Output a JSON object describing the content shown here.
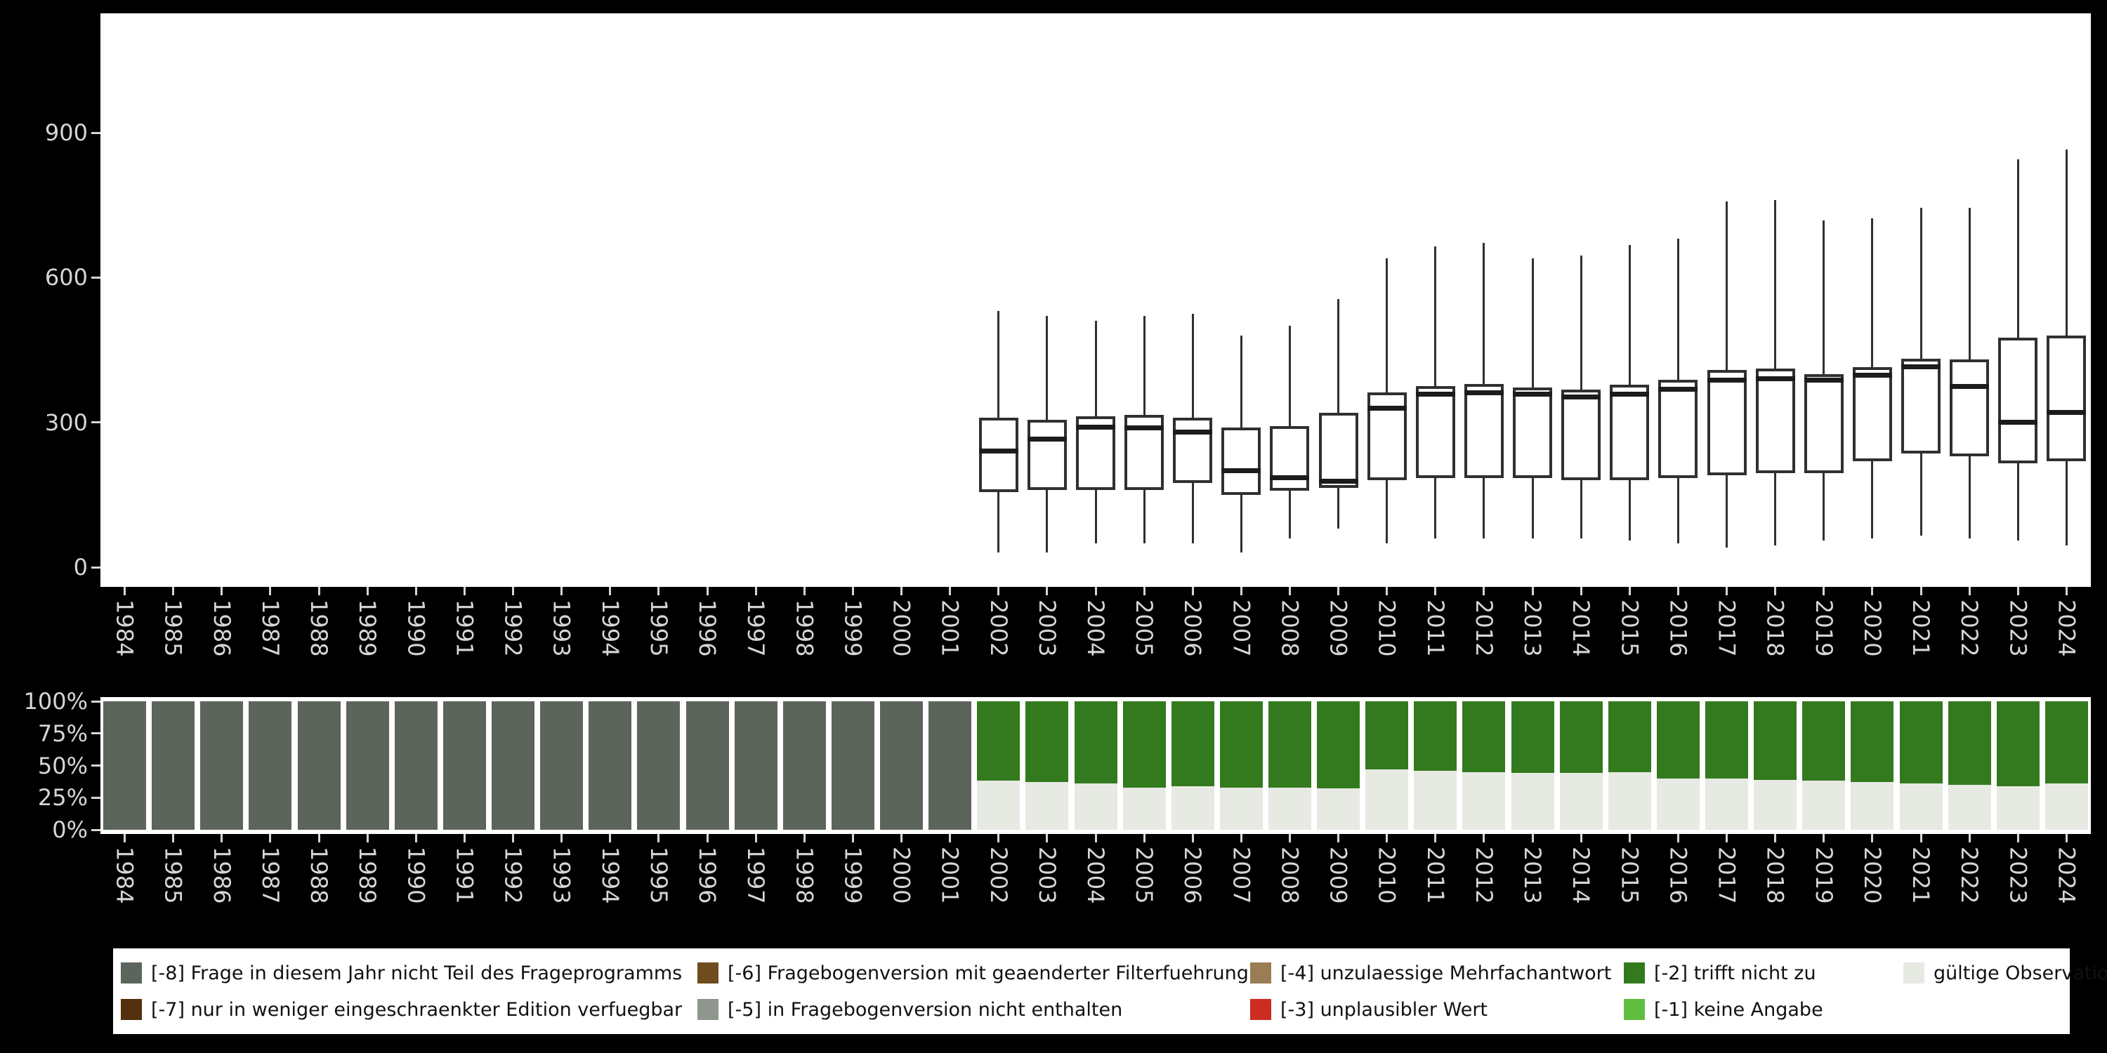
{
  "colors": {
    "page_bg": "#000000",
    "panel_bg": "#ffffff",
    "axis_text": "#d6d6d6",
    "box_stroke": "#303030",
    "median_stroke": "#1c1c1c",
    "legend_bg": "#ffffff",
    "legend_text": "#111111",
    "-8": "#5c655b",
    "-7": "#53300e",
    "-6": "#704b1d",
    "-5": "#8f968e",
    "-4": "#9a7d54",
    "-3": "#cc2d21",
    "-2": "#337a1e",
    "-1": "#61bd3e",
    "valid": "#e7e9e3"
  },
  "chart_data": [
    {
      "type": "boxplot",
      "title": "",
      "xlabel": "",
      "ylabel": "",
      "grid": false,
      "x_categories": [
        "1984",
        "1985",
        "1986",
        "1987",
        "1988",
        "1989",
        "1990",
        "1991",
        "1992",
        "1993",
        "1994",
        "1995",
        "1996",
        "1997",
        "1998",
        "1999",
        "2000",
        "2001",
        "2002",
        "2003",
        "2004",
        "2005",
        "2006",
        "2007",
        "2008",
        "2009",
        "2010",
        "2011",
        "2012",
        "2013",
        "2014",
        "2015",
        "2016",
        "2017",
        "2018",
        "2019",
        "2020",
        "2021",
        "2022",
        "2023",
        "2024"
      ],
      "y_ticks": [
        0,
        300,
        600,
        900
      ],
      "ylim": [
        0,
        1150
      ],
      "boxes": {
        "2002": {
          "min": 30,
          "q1": 155,
          "median": 240,
          "q3": 310,
          "max": 530
        },
        "2003": {
          "min": 30,
          "q1": 160,
          "median": 265,
          "q3": 305,
          "max": 520
        },
        "2004": {
          "min": 50,
          "q1": 160,
          "median": 290,
          "q3": 312,
          "max": 510
        },
        "2005": {
          "min": 50,
          "q1": 160,
          "median": 288,
          "q3": 315,
          "max": 520
        },
        "2006": {
          "min": 50,
          "q1": 175,
          "median": 280,
          "q3": 310,
          "max": 525
        },
        "2007": {
          "min": 30,
          "q1": 150,
          "median": 200,
          "q3": 290,
          "max": 480
        },
        "2008": {
          "min": 60,
          "q1": 158,
          "median": 185,
          "q3": 292,
          "max": 500
        },
        "2009": {
          "min": 80,
          "q1": 165,
          "median": 178,
          "q3": 320,
          "max": 555
        },
        "2010": {
          "min": 50,
          "q1": 180,
          "median": 330,
          "q3": 362,
          "max": 640
        },
        "2011": {
          "min": 60,
          "q1": 185,
          "median": 358,
          "q3": 375,
          "max": 665
        },
        "2012": {
          "min": 60,
          "q1": 185,
          "median": 362,
          "q3": 380,
          "max": 672
        },
        "2013": {
          "min": 60,
          "q1": 185,
          "median": 358,
          "q3": 372,
          "max": 640
        },
        "2014": {
          "min": 60,
          "q1": 180,
          "median": 352,
          "q3": 368,
          "max": 645
        },
        "2015": {
          "min": 55,
          "q1": 180,
          "median": 358,
          "q3": 378,
          "max": 668
        },
        "2016": {
          "min": 50,
          "q1": 185,
          "median": 368,
          "q3": 388,
          "max": 680
        },
        "2017": {
          "min": 40,
          "q1": 190,
          "median": 388,
          "q3": 408,
          "max": 758
        },
        "2018": {
          "min": 45,
          "q1": 195,
          "median": 390,
          "q3": 412,
          "max": 760
        },
        "2019": {
          "min": 55,
          "q1": 195,
          "median": 388,
          "q3": 400,
          "max": 718
        },
        "2020": {
          "min": 60,
          "q1": 220,
          "median": 398,
          "q3": 415,
          "max": 722
        },
        "2021": {
          "min": 65,
          "q1": 235,
          "median": 415,
          "q3": 432,
          "max": 745
        },
        "2022": {
          "min": 60,
          "q1": 230,
          "median": 375,
          "q3": 430,
          "max": 745
        },
        "2023": {
          "min": 55,
          "q1": 215,
          "median": 300,
          "q3": 475,
          "max": 845
        },
        "2024": {
          "min": 45,
          "q1": 220,
          "median": 320,
          "q3": 480,
          "max": 865
        }
      }
    },
    {
      "type": "bar",
      "subtype": "stacked-percent",
      "title": "",
      "xlabel": "",
      "ylabel": "",
      "grid": false,
      "x_categories": [
        "1984",
        "1985",
        "1986",
        "1987",
        "1988",
        "1989",
        "1990",
        "1991",
        "1992",
        "1993",
        "1994",
        "1995",
        "1996",
        "1997",
        "1998",
        "1999",
        "2000",
        "2001",
        "2002",
        "2003",
        "2004",
        "2005",
        "2006",
        "2007",
        "2008",
        "2009",
        "2010",
        "2011",
        "2012",
        "2013",
        "2014",
        "2015",
        "2016",
        "2017",
        "2018",
        "2019",
        "2020",
        "2021",
        "2022",
        "2023",
        "2024"
      ],
      "y_ticks": [
        "0%",
        "25%",
        "50%",
        "75%",
        "100%"
      ],
      "bars": {
        "1984": [
          {
            "code": "-8",
            "pct": 100
          }
        ],
        "1985": [
          {
            "code": "-8",
            "pct": 100
          }
        ],
        "1986": [
          {
            "code": "-8",
            "pct": 100
          }
        ],
        "1987": [
          {
            "code": "-8",
            "pct": 100
          }
        ],
        "1988": [
          {
            "code": "-8",
            "pct": 100
          }
        ],
        "1989": [
          {
            "code": "-8",
            "pct": 100
          }
        ],
        "1990": [
          {
            "code": "-8",
            "pct": 100
          }
        ],
        "1991": [
          {
            "code": "-8",
            "pct": 100
          }
        ],
        "1992": [
          {
            "code": "-8",
            "pct": 100
          }
        ],
        "1993": [
          {
            "code": "-8",
            "pct": 100
          }
        ],
        "1994": [
          {
            "code": "-8",
            "pct": 100
          }
        ],
        "1995": [
          {
            "code": "-8",
            "pct": 100
          }
        ],
        "1996": [
          {
            "code": "-8",
            "pct": 100
          }
        ],
        "1997": [
          {
            "code": "-8",
            "pct": 100
          }
        ],
        "1998": [
          {
            "code": "-8",
            "pct": 100
          }
        ],
        "1999": [
          {
            "code": "-8",
            "pct": 100
          }
        ],
        "2000": [
          {
            "code": "-8",
            "pct": 100
          }
        ],
        "2001": [
          {
            "code": "-8",
            "pct": 100
          }
        ],
        "2002": [
          {
            "code": "-2",
            "pct": 62
          },
          {
            "code": "valid",
            "pct": 38
          }
        ],
        "2003": [
          {
            "code": "-2",
            "pct": 63
          },
          {
            "code": "valid",
            "pct": 37
          }
        ],
        "2004": [
          {
            "code": "-2",
            "pct": 64
          },
          {
            "code": "valid",
            "pct": 36
          }
        ],
        "2005": [
          {
            "code": "-2",
            "pct": 67
          },
          {
            "code": "valid",
            "pct": 33
          }
        ],
        "2006": [
          {
            "code": "-2",
            "pct": 66
          },
          {
            "code": "valid",
            "pct": 34
          }
        ],
        "2007": [
          {
            "code": "-2",
            "pct": 67
          },
          {
            "code": "valid",
            "pct": 33
          }
        ],
        "2008": [
          {
            "code": "-2",
            "pct": 67
          },
          {
            "code": "valid",
            "pct": 33
          }
        ],
        "2009": [
          {
            "code": "-2",
            "pct": 68
          },
          {
            "code": "valid",
            "pct": 32
          }
        ],
        "2010": [
          {
            "code": "-2",
            "pct": 53
          },
          {
            "code": "valid",
            "pct": 47
          }
        ],
        "2011": [
          {
            "code": "-2",
            "pct": 54
          },
          {
            "code": "valid",
            "pct": 46
          }
        ],
        "2012": [
          {
            "code": "-2",
            "pct": 55
          },
          {
            "code": "valid",
            "pct": 45
          }
        ],
        "2013": [
          {
            "code": "-2",
            "pct": 56
          },
          {
            "code": "valid",
            "pct": 44
          }
        ],
        "2014": [
          {
            "code": "-2",
            "pct": 56
          },
          {
            "code": "valid",
            "pct": 44
          }
        ],
        "2015": [
          {
            "code": "-2",
            "pct": 55
          },
          {
            "code": "valid",
            "pct": 45
          }
        ],
        "2016": [
          {
            "code": "-2",
            "pct": 60
          },
          {
            "code": "valid",
            "pct": 40
          }
        ],
        "2017": [
          {
            "code": "-2",
            "pct": 60
          },
          {
            "code": "valid",
            "pct": 40
          }
        ],
        "2018": [
          {
            "code": "-2",
            "pct": 61
          },
          {
            "code": "valid",
            "pct": 39
          }
        ],
        "2019": [
          {
            "code": "-2",
            "pct": 62
          },
          {
            "code": "valid",
            "pct": 38
          }
        ],
        "2020": [
          {
            "code": "-2",
            "pct": 63
          },
          {
            "code": "valid",
            "pct": 37
          }
        ],
        "2021": [
          {
            "code": "-2",
            "pct": 64
          },
          {
            "code": "valid",
            "pct": 36
          }
        ],
        "2022": [
          {
            "code": "-2",
            "pct": 65
          },
          {
            "code": "valid",
            "pct": 35
          }
        ],
        "2023": [
          {
            "code": "-2",
            "pct": 66
          },
          {
            "code": "valid",
            "pct": 34
          }
        ],
        "2024": [
          {
            "code": "-2",
            "pct": 64
          },
          {
            "code": "valid",
            "pct": 36
          }
        ]
      }
    }
  ],
  "legend": {
    "items": [
      {
        "code": "-8",
        "label": "[-8] Frage in diesem Jahr nicht Teil des Frageprogramms",
        "col": 0,
        "row": 0
      },
      {
        "code": "-7",
        "label": "[-7] nur in weniger eingeschraenkter Edition verfuegbar",
        "col": 0,
        "row": 1
      },
      {
        "code": "-6",
        "label": "[-6] Fragebogenversion mit geaenderter Filterfuehrung",
        "col": 1,
        "row": 0
      },
      {
        "code": "-5",
        "label": "[-5] in Fragebogenversion nicht enthalten",
        "col": 1,
        "row": 1
      },
      {
        "code": "-4",
        "label": "[-4] unzulaessige Mehrfachantwort",
        "col": 2,
        "row": 0
      },
      {
        "code": "-3",
        "label": "[-3] unplausibler Wert",
        "col": 2,
        "row": 1
      },
      {
        "code": "-2",
        "label": "[-2] trifft nicht zu",
        "col": 3,
        "row": 0
      },
      {
        "code": "-1",
        "label": "[-1] keine Angabe",
        "col": 3,
        "row": 1
      },
      {
        "code": "valid",
        "label": "gültige Observationen",
        "col": 4,
        "row": 0
      }
    ]
  }
}
